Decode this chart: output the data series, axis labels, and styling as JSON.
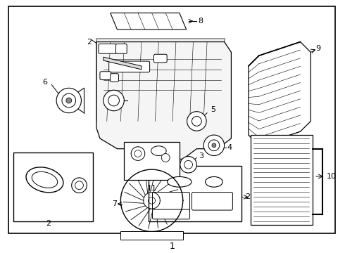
{
  "bg_color": "#ffffff",
  "line_color": "#000000",
  "figsize": [
    4.9,
    3.6
  ],
  "dpi": 100
}
